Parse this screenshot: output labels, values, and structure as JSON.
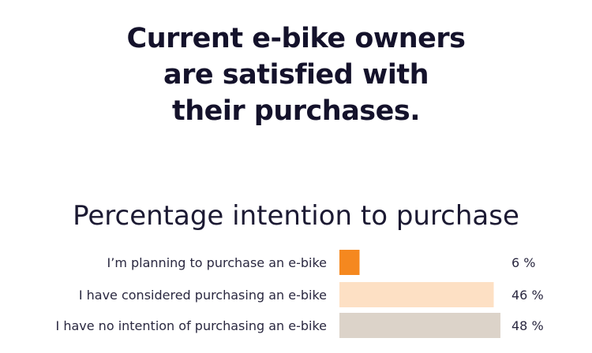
{
  "headline": {
    "line1": "Current e-bike owners",
    "line2": "are satisfied with",
    "line3": "their purchases."
  },
  "chart_data": {
    "type": "bar",
    "orientation": "horizontal",
    "title": "Percentage intention to purchase",
    "categories": [
      "I’m planning to purchase an e-bike",
      "I have considered purchasing an e-bike",
      "I have no intention of purchasing an e-bike"
    ],
    "values": [
      6,
      46,
      48
    ],
    "value_labels": [
      "6 %",
      "46 %",
      "48 %"
    ],
    "colors": [
      "#f5881f",
      "#fde0c4",
      "#dcd3c9"
    ],
    "xlim": [
      0,
      48
    ],
    "grid": false,
    "legend": "none"
  }
}
